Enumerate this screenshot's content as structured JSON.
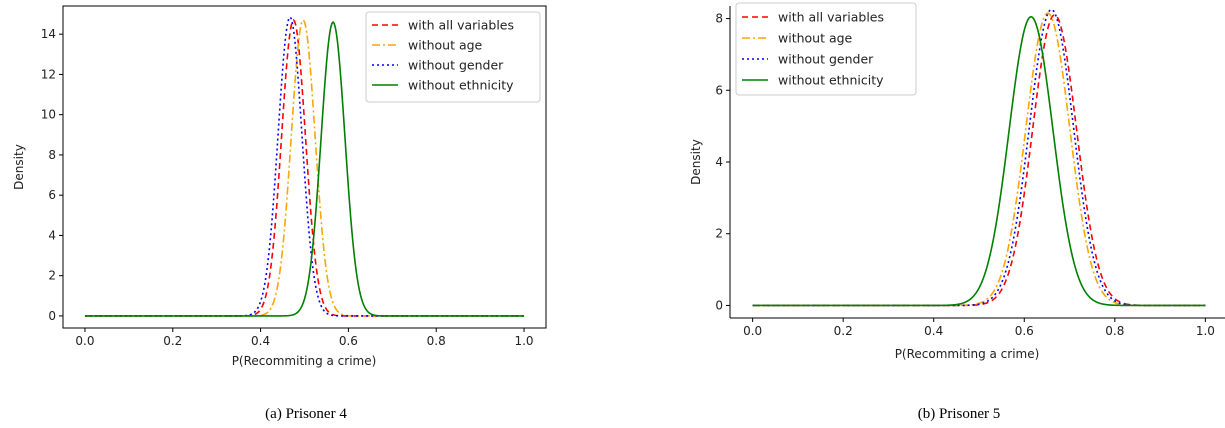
{
  "colors": {
    "with_all": "#ff0000",
    "without_age": "#ffa500",
    "without_gender": "#0000ff",
    "without_ethnicity": "#008000"
  },
  "chart_data": [
    {
      "type": "line",
      "caption": "(a) Prisoner 4",
      "xlabel": "P(Recommiting a crime)",
      "ylabel": "Density",
      "xlim": [
        -0.05,
        1.05
      ],
      "ylim": [
        -0.6,
        15.4
      ],
      "xticks": [
        0.0,
        0.2,
        0.4,
        0.6,
        0.8,
        1.0
      ],
      "xtick_labels": [
        "0.0",
        "0.2",
        "0.4",
        "0.6",
        "0.8",
        "1.0"
      ],
      "yticks": [
        0,
        2,
        4,
        6,
        8,
        10,
        12,
        14
      ],
      "ytick_labels": [
        "0",
        "2",
        "4",
        "6",
        "8",
        "10",
        "12",
        "14"
      ],
      "legend_position": "top-right",
      "series": [
        {
          "name": "with all variables",
          "style": "dashed",
          "color_key": "with_all",
          "mu": 0.475,
          "sigma": 0.0272,
          "peak": 14.7
        },
        {
          "name": "without age",
          "style": "dashdot",
          "color_key": "without_age",
          "mu": 0.497,
          "sigma": 0.0272,
          "peak": 14.7
        },
        {
          "name": "without gender",
          "style": "dotted",
          "color_key": "without_gender",
          "mu": 0.467,
          "sigma": 0.0272,
          "peak": 14.85
        },
        {
          "name": "without ethnicity",
          "style": "solid",
          "color_key": "without_ethnicity",
          "mu": 0.565,
          "sigma": 0.0272,
          "peak": 14.6
        }
      ]
    },
    {
      "type": "line",
      "caption": "(b) Prisoner 5",
      "xlabel": "P(Recommiting a crime)",
      "ylabel": "Density",
      "xlim": [
        -0.05,
        1.05
      ],
      "ylim": [
        -0.35,
        8.35
      ],
      "xticks": [
        0.0,
        0.2,
        0.4,
        0.6,
        0.8,
        1.0
      ],
      "xtick_labels": [
        "0.0",
        "0.2",
        "0.4",
        "0.6",
        "0.8",
        "1.0"
      ],
      "yticks": [
        0,
        2,
        4,
        6,
        8
      ],
      "ytick_labels": [
        "0",
        "2",
        "4",
        "6",
        "8"
      ],
      "legend_position": "top-left",
      "series": [
        {
          "name": "with all variables",
          "style": "dashed",
          "color_key": "with_all",
          "mu": 0.667,
          "sigma": 0.0485,
          "peak": 8.1
        },
        {
          "name": "without age",
          "style": "dashdot",
          "color_key": "without_age",
          "mu": 0.652,
          "sigma": 0.0485,
          "peak": 8.15
        },
        {
          "name": "without gender",
          "style": "dotted",
          "color_key": "without_gender",
          "mu": 0.66,
          "sigma": 0.0485,
          "peak": 8.25
        },
        {
          "name": "without ethnicity",
          "style": "solid",
          "color_key": "without_ethnicity",
          "mu": 0.615,
          "sigma": 0.0485,
          "peak": 8.05
        }
      ]
    }
  ]
}
